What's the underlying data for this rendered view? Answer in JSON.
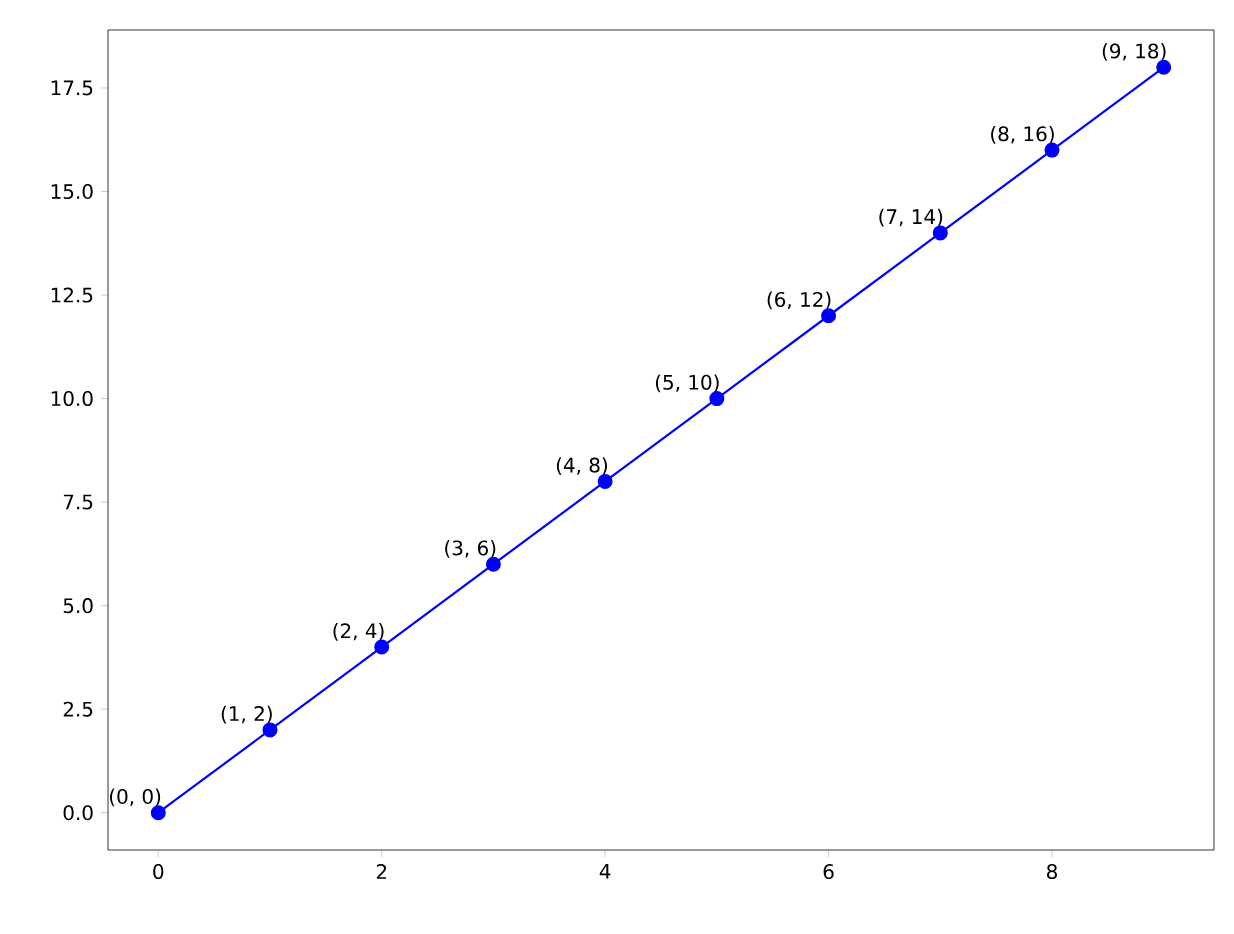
{
  "chart_data": {
    "type": "line",
    "x": [
      0,
      1,
      2,
      3,
      4,
      5,
      6,
      7,
      8,
      9
    ],
    "values": [
      0,
      2,
      4,
      6,
      8,
      10,
      12,
      14,
      16,
      18
    ],
    "value_labels": [
      "(0, 0)",
      "(1, 2)",
      "(2, 4)",
      "(3, 6)",
      "(4, 8)",
      "(5, 10)",
      "(6, 12)",
      "(7, 14)",
      "(8, 16)",
      "(9, 18)"
    ],
    "color": "#0000ff",
    "marker": "circle",
    "line_style": "solid",
    "xlim": [
      -0.45,
      9.45
    ],
    "ylim": [
      -0.9,
      18.9
    ],
    "xticks": [
      0,
      2,
      4,
      6,
      8
    ],
    "yticks": [
      {
        "value": 0,
        "label": "0.0"
      },
      2.5,
      {
        "value": 5,
        "label": "5.0"
      },
      7.5,
      {
        "value": 10,
        "label": "10.0"
      },
      12.5,
      {
        "value": 15,
        "label": "15.0"
      },
      17.5
    ],
    "grid": false
  }
}
